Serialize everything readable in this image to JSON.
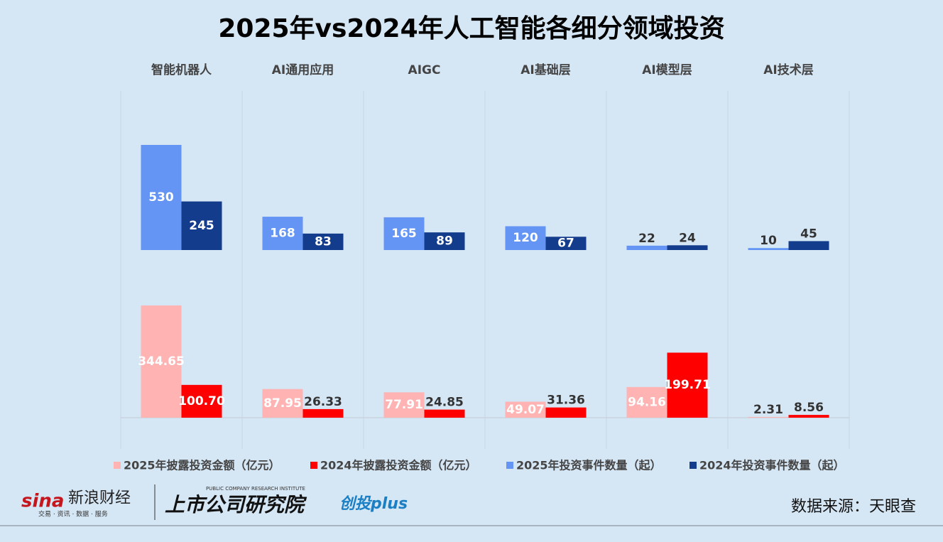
{
  "chart_data": {
    "type": "bar",
    "title": "2025年vs2024年人工智能各细分领域投资",
    "categories": [
      "智能机器人",
      "AI通用应用",
      "AIGC",
      "AI基础层",
      "AI模型层",
      "AI技术层"
    ],
    "series": [
      {
        "name": "2025年投资事件数量（起）",
        "color": "#6495f5",
        "values": [
          530,
          168,
          165,
          120,
          22,
          10
        ]
      },
      {
        "name": "2024年投资事件数量（起）",
        "color": "#143c8c",
        "values": [
          245,
          83,
          89,
          67,
          24,
          45
        ]
      },
      {
        "name": "2025年披露投资金额（亿元）",
        "color": "#ffb3b3",
        "axis": "y2",
        "values": [
          344.65,
          87.95,
          77.91,
          49.07,
          94.16,
          2.31
        ]
      },
      {
        "name": "2024年披露投资金额（亿元）",
        "color": "#ff0000",
        "axis": "y2",
        "values": [
          100.7,
          26.33,
          24.85,
          31.36,
          199.71,
          8.56
        ],
        "value_labels": [
          "100.70",
          "26.33",
          "24.85",
          "31.36",
          "199.71",
          "8.56"
        ]
      }
    ],
    "legend_order": [
      2,
      3,
      0,
      1
    ],
    "source": "数据来源：天眼查",
    "branding": {
      "sina": "sina",
      "sina_name": "新浪财经",
      "sina_tagline": "交易 · 资讯 · 数据 · 服务",
      "institute": "上市公司研究院",
      "institute_en": "PUBLIC COMPANY RESEARCH INSTITUTE",
      "plus": "创投plus"
    }
  }
}
